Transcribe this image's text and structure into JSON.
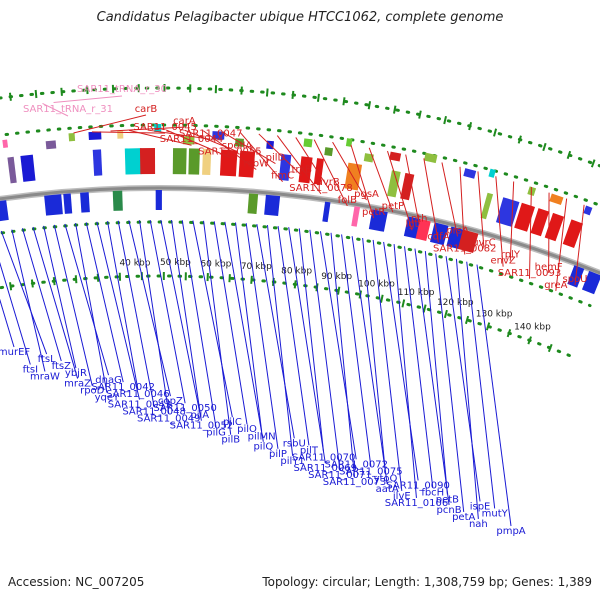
{
  "title": "Candidatus Pelagibacter ubique HTCC1062, complete genome",
  "footer": {
    "accession": "Accession: NC_007205",
    "summary": "Topology: circular; Length: 1,308,759 bp; Genes: 1,389"
  },
  "colors": {
    "forward_label": "#d42020",
    "reverse_label": "#1a1ad4",
    "trna_label": "#ef8fbf",
    "ruler_tick": "#1e8a1e",
    "backbone": "#8a8a8a"
  },
  "ruler": [
    "40 kbp",
    "50 kbp",
    "60 kbp",
    "70 kbp",
    "80 kbp",
    "90 kbp",
    "100 kbp",
    "110 kbp",
    "120 kbp",
    "130 kbp",
    "140 kbp"
  ],
  "trna_labels": [
    "SAR11_tRNA_r_30",
    "SAR11_tRNA_r_31"
  ],
  "forward_labels": [
    "carB",
    "SAR11_0045",
    "carA",
    "SAR11_0044",
    "SAR11_0047",
    "SAR11_0055",
    "spoIIA",
    "rsbW",
    "pilD",
    "fimC",
    "trxB",
    "SAR11_0078",
    "uvrB",
    "folB",
    "pgsA",
    "petR",
    "petP",
    "lgt",
    "pth",
    "cdfA",
    "prsA",
    "SAR11_0082",
    "uvrC",
    "envZ",
    "rplY",
    "SAR11_0093",
    "hemF",
    "greA",
    "spoU"
  ],
  "reverse_labels": [
    "murEF",
    "ftsI",
    "ftsL",
    "mraW",
    "ftsZ",
    "mraZ",
    "ybjR",
    "rpoD",
    "dnaG",
    "yqeY",
    "SAR11_0042",
    "SAR11_0043",
    "SAR11_0046",
    "SAR11_0048",
    "copZ",
    "SAR11_0049",
    "SAR11_0050",
    "SAR11_0052",
    "pilA",
    "pilG",
    "pilC",
    "pilB",
    "pilO",
    "pilQ",
    "pilMN",
    "pilP",
    "rsbU",
    "pilY1",
    "pilT",
    "SAR11_0069",
    "SAR11_0070",
    "SAR11_0071",
    "SAR11_0072",
    "SAR11_0073",
    "SAR11_0075",
    "aatA",
    "ytoQ",
    "ilvE",
    "SAR11_0090",
    "SAR11_0106",
    "fbcH",
    "pcnB",
    "petB",
    "petA",
    "ispE",
    "nah",
    "mutY",
    "pmpA"
  ]
}
